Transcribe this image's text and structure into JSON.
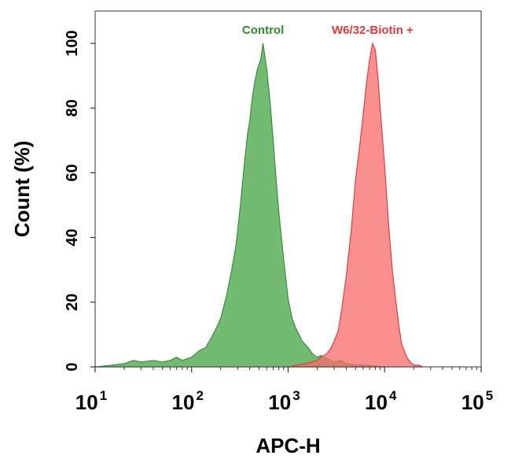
{
  "chart_data": {
    "type": "area",
    "xlabel": "APC-H",
    "ylabel": "Count  (%)",
    "x_scale": "log",
    "xlim": [
      10,
      100000
    ],
    "ylim": [
      0,
      110
    ],
    "x_ticks": [
      {
        "base": "10",
        "exp": "1",
        "value": 10
      },
      {
        "base": "10",
        "exp": "2",
        "value": 100
      },
      {
        "base": "10",
        "exp": "3",
        "value": 1000
      },
      {
        "base": "10",
        "exp": "4",
        "value": 10000
      },
      {
        "base": "10",
        "exp": "5",
        "value": 100000
      }
    ],
    "y_ticks": [
      "0",
      "20",
      "40",
      "60",
      "80",
      "100"
    ],
    "legend_placement": "labels above peaks",
    "grid": false,
    "series": [
      {
        "name": "Control",
        "label_color": "#2e8b2e",
        "fill": "#5aae5a",
        "stroke": "#3c8c3c",
        "x": [
          10,
          15,
          20,
          25,
          30,
          40,
          50,
          60,
          70,
          80,
          100,
          120,
          140,
          160,
          180,
          200,
          230,
          260,
          290,
          320,
          350,
          380,
          400,
          420,
          450,
          480,
          520,
          550,
          600,
          650,
          700,
          750,
          800,
          900,
          1000,
          1100,
          1200,
          1400,
          1600,
          1800,
          2000,
          2200,
          2500,
          2800,
          3000,
          3500,
          4000,
          5000,
          6000,
          8000,
          10000
        ],
        "y": [
          0,
          0.5,
          1,
          2,
          1.5,
          2,
          1.5,
          2,
          3,
          2,
          3,
          5,
          6,
          9,
          12,
          15,
          22,
          30,
          38,
          50,
          62,
          72,
          76,
          82,
          88,
          92,
          95,
          100,
          92,
          82,
          70,
          58,
          48,
          33,
          21,
          15,
          12,
          8,
          6,
          4,
          3,
          3.5,
          2.5,
          2,
          1.5,
          2,
          1,
          0.5,
          0.5,
          0.3,
          0
        ]
      },
      {
        "name": "W6/32-Biotin +",
        "label_color": "#e03a3a",
        "fill": "#f86a6a",
        "stroke": "#d84040",
        "x": [
          1000,
          1500,
          2000,
          2200,
          2500,
          2800,
          3000,
          3300,
          3600,
          4000,
          4500,
          5000,
          5500,
          6000,
          6500,
          7000,
          7500,
          8000,
          8500,
          9000,
          10000,
          11000,
          12000,
          13000,
          14000,
          15000,
          17000,
          19000,
          21000,
          23000,
          25000
        ],
        "y": [
          0,
          1,
          2,
          3,
          4,
          6,
          8,
          11,
          18,
          28,
          42,
          58,
          68,
          78,
          88,
          95,
          100,
          98,
          90,
          80,
          62,
          44,
          30,
          21,
          13,
          7,
          3,
          1,
          0.5,
          0.5,
          0
        ]
      }
    ]
  }
}
